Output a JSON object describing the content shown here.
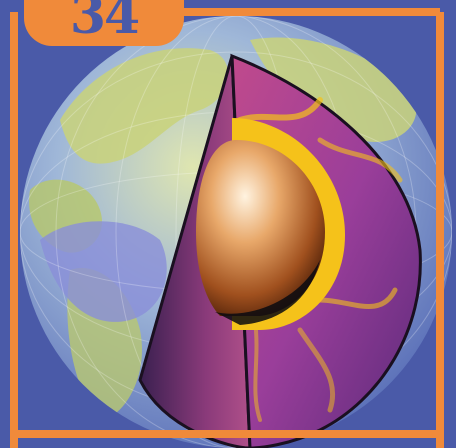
{
  "badge": {
    "number": "34"
  },
  "colors": {
    "background": "#4a5aa8",
    "frame": "#f08a3a",
    "ocean": "#7a8fd0",
    "land": "#c9d27a",
    "mantle": "#a03c8c",
    "plume": "#f5c21a",
    "core": "#e8a050"
  },
  "icons": [
    "earth-cutaway-illustration"
  ]
}
